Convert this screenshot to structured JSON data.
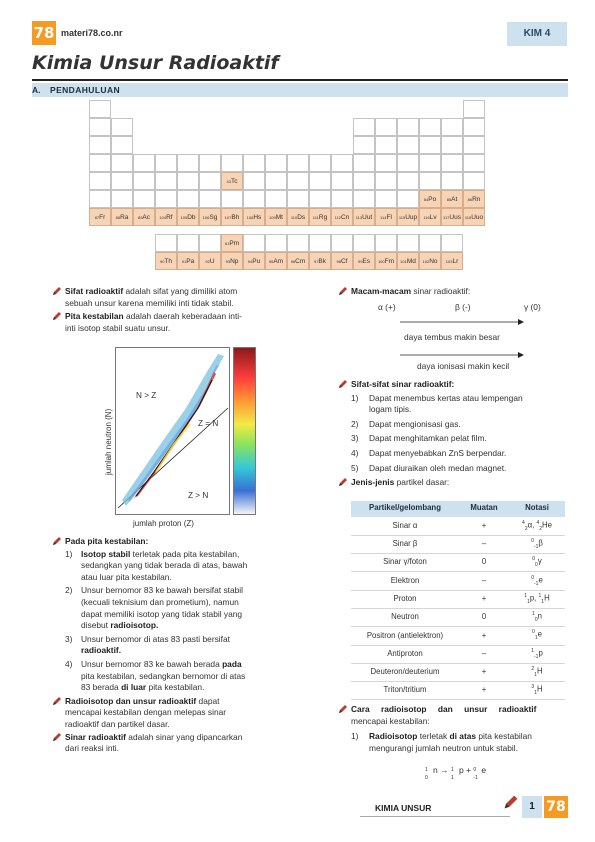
{
  "header": {
    "logo": "78",
    "site": "materi78.co.nr",
    "badge": "KIM 4"
  },
  "title": "Kimia Unsur Radioaktif",
  "section": {
    "letter": "A.",
    "name": "PENDAHULUAN"
  },
  "periodic": {
    "tc": [
      "43",
      "Tc"
    ],
    "row6": [
      [
        "84",
        "Po"
      ],
      [
        "85",
        "At"
      ],
      [
        "86",
        "Rn"
      ]
    ],
    "row7": [
      [
        "87",
        "Fr"
      ],
      [
        "88",
        "Ra"
      ],
      [
        "89",
        "Ac"
      ],
      [
        "104",
        "Rf"
      ],
      [
        "105",
        "Db"
      ],
      [
        "106",
        "Sg"
      ],
      [
        "107",
        "Bh"
      ],
      [
        "108",
        "Hs"
      ],
      [
        "109",
        "Mt"
      ],
      [
        "110",
        "Ds"
      ],
      [
        "111",
        "Rg"
      ],
      [
        "112",
        "Cn"
      ],
      [
        "113",
        "Uut"
      ],
      [
        "114",
        "Fl"
      ],
      [
        "115",
        "Uup"
      ],
      [
        "116",
        "Lv"
      ],
      [
        "117",
        "Uus"
      ],
      [
        "118",
        "Uuo"
      ]
    ],
    "pm": [
      "61",
      "Pm"
    ],
    "act": [
      [
        "90",
        "Th"
      ],
      [
        "91",
        "Pa"
      ],
      [
        "92",
        "U"
      ],
      [
        "93",
        "Np"
      ],
      [
        "94",
        "Pu"
      ],
      [
        "95",
        "Am"
      ],
      [
        "96",
        "Cm"
      ],
      [
        "97",
        "Bk"
      ],
      [
        "98",
        "Cf"
      ],
      [
        "99",
        "Es"
      ],
      [
        "100",
        "Fm"
      ],
      [
        "101",
        "Md"
      ],
      [
        "102",
        "No"
      ],
      [
        "103",
        "Lr"
      ]
    ]
  },
  "left": {
    "p1_term": "Sifat radioaktif",
    "p1_rest1": " adalah sifat yang dimiliki atom",
    "p1_line2": "sebuah unsur karena memiliki inti tidak stabil.",
    "p2_term": "Pita kestabilan",
    "p2_rest1": " adalah daerah keberadaan inti-",
    "p2_line2": "inti isotop stabil suatu unsur.",
    "chart_ylabel": "jumlah neutron (N)",
    "chart_xlabel": "jumlah proton (Z)",
    "zone_top": "N > Z",
    "zone_mid": "Z = N",
    "zone_bot": "Z > N",
    "pita_head": "Pada pita kestabilan:",
    "items": [
      {
        "n": "1)",
        "lines": [
          [
            "b",
            "Isotop stabil"
          ],
          [
            "t",
            " terletak pada pita kestabilan,"
          ]
        ],
        "extra": [
          "sedangkan yang tidak berada di atas, bawah",
          "atau luar pita kestabilan."
        ]
      },
      {
        "n": "2)",
        "text1": "Unsur bernomor 83 ke bawah bersifat stabil",
        "text2": "(kecuali teknisium dan prometium), namun",
        "text3": "dapat memiliki isotop yang tidak stabil yang",
        "text4a": "disebut ",
        "text4b": "radioisotop."
      },
      {
        "n": "3)",
        "text1": "Unsur bernomor di atas 83 pasti bersifat",
        "text2": "radioaktif."
      },
      {
        "n": "4)",
        "text1a": "Unsur bernomor 83 ke bawah berada ",
        "text1b": "pada",
        "text2": "pita kestabilan, sedangkan bernomor di atas",
        "text3a": "83 berada ",
        "text3b": "di luar",
        "text3c": " pita kestabilan."
      }
    ],
    "p3_term": "Radioisotop dan unsur radioaktif",
    "p3_rest1": " dapat",
    "p3_line2": "mencapai kestabilan dengan melepas sinar",
    "p3_line3": "radioaktif dan partikel dasar.",
    "p4_term": "Sinar radioaktif",
    "p4_rest1": " adalah sinar yang dipancarkan",
    "p4_line2": "dari reaksi inti."
  },
  "right": {
    "mm_term": "Macam-macam",
    "mm_rest": " sinar radioaktif:",
    "rays": [
      "α (+)",
      "β (-)",
      "γ (0)"
    ],
    "arrow1": "daya tembus makin besar",
    "arrow2": "daya ionisasi makin kecil",
    "sifat_head": "Sifat-sifat sinar radioaktif:",
    "sifat": [
      [
        "1)",
        "Dapat menembus kertas atau lempengan",
        "logam tipis."
      ],
      [
        "2)",
        "Dapat mengionisasi gas.",
        ""
      ],
      [
        "3)",
        "Dapat menghitamkan pelat film.",
        ""
      ],
      [
        "4)",
        "Dapat menyebabkan ZnS berpendar.",
        ""
      ],
      [
        "5)",
        "Dapat diuraikan oleh medan magnet.",
        ""
      ]
    ],
    "jenis_term": "Jenis-jenis",
    "jenis_rest": " partikel dasar:",
    "table_headers": [
      "Partikel/gelombang",
      "Muatan",
      "Notasi"
    ],
    "table_rows": [
      [
        "Sinar α",
        "+"
      ],
      [
        "Sinar β",
        "–"
      ],
      [
        "Sinar γ/foton",
        "0"
      ],
      [
        "Elektron",
        "–"
      ],
      [
        "Proton",
        "+"
      ],
      [
        "Neutron",
        "0"
      ],
      [
        "Positron (antielektron)",
        "+"
      ],
      [
        "Antiproton",
        "–"
      ],
      [
        "Deuteron/deuterium",
        "+"
      ],
      [
        "Triton/tritium",
        "+"
      ]
    ],
    "cara_term": "Cara radioisotop dan unsur radioaktif",
    "cara_line2": "mencapai kestabilan:",
    "cara1_n": "1)",
    "cara1_a": "Radioisotop",
    "cara1_b": " terletak ",
    "cara1_c": "di atas",
    "cara1_d": " pita kestabilan",
    "cara1_line2": "mengurangi jumlah neutron untuk stabil."
  },
  "footer": {
    "name": "KIMIA UNSUR",
    "page": "1",
    "logo": "78"
  }
}
